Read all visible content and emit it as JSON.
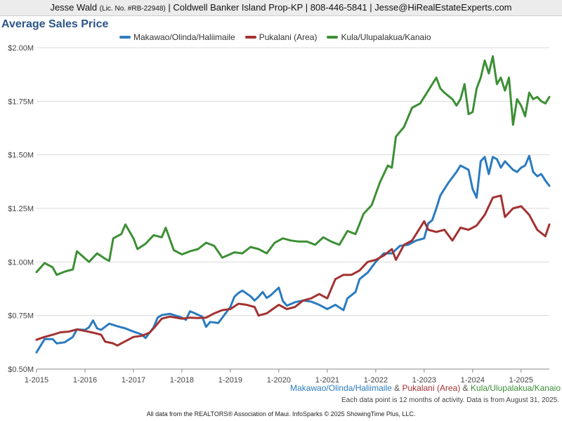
{
  "header": {
    "name": "Jesse Wald",
    "license": "(Lic. No. #RB-22948)",
    "rest": "| Coldwell Banker Island Prop-KP | 808-446-5841 | Jesse@HiRealEstateExperts.com"
  },
  "notes": {
    "amp": "&",
    "activity": "Each data point is 12 months of activity. Data is from August 31, 2025.",
    "footer": "All data from the REALTORS® Association of Maui. InfoSparks © 2025 ShowingTime Plus, LLC."
  },
  "chart_data": {
    "type": "line",
    "title": "Average Sales Price",
    "xlabel": "",
    "ylabel": "",
    "grid": true,
    "legend_position": "top-center",
    "x_start": "2015-01",
    "x_end": "2025-08",
    "xlim": [
      "2015-01",
      "2025-08"
    ],
    "ylim": [
      500000,
      2000000
    ],
    "x_ticks": [
      "1-2015",
      "1-2016",
      "1-2017",
      "1-2018",
      "1-2019",
      "1-2020",
      "1-2021",
      "1-2022",
      "1-2023",
      "1-2024",
      "1-2025"
    ],
    "y_ticks": [
      {
        "value": 500000,
        "label": "$0.50M"
      },
      {
        "value": 750000,
        "label": "$0.75M"
      },
      {
        "value": 1000000,
        "label": "$1.00M"
      },
      {
        "value": 1250000,
        "label": "$1.25M"
      },
      {
        "value": 1500000,
        "label": "$1.50M"
      },
      {
        "value": 1750000,
        "label": "$1.75M"
      },
      {
        "value": 2000000,
        "label": "$2.00M"
      }
    ],
    "series": [
      {
        "name": "Makawao/Olinda/Haliimaile",
        "color": "#2b7bbf",
        "points": [
          [
            "2015-01",
            578000
          ],
          [
            "2015-03",
            640000
          ],
          [
            "2015-05",
            640000
          ],
          [
            "2015-06",
            620000
          ],
          [
            "2015-08",
            625000
          ],
          [
            "2015-10",
            650000
          ],
          [
            "2015-11",
            685000
          ],
          [
            "2016-01",
            683000
          ],
          [
            "2016-02",
            695000
          ],
          [
            "2016-03",
            727000
          ],
          [
            "2016-04",
            690000
          ],
          [
            "2016-05",
            683000
          ],
          [
            "2016-07",
            712000
          ],
          [
            "2016-09",
            700000
          ],
          [
            "2016-11",
            690000
          ],
          [
            "2017-01",
            675000
          ],
          [
            "2017-03",
            662000
          ],
          [
            "2017-04",
            645000
          ],
          [
            "2017-06",
            695000
          ],
          [
            "2017-07",
            740000
          ],
          [
            "2017-08",
            752000
          ],
          [
            "2017-10",
            758000
          ],
          [
            "2018-01",
            740000
          ],
          [
            "2018-02",
            730000
          ],
          [
            "2018-03",
            770000
          ],
          [
            "2018-04",
            762000
          ],
          [
            "2018-06",
            745000
          ],
          [
            "2018-07",
            697000
          ],
          [
            "2018-08",
            720000
          ],
          [
            "2018-10",
            715000
          ],
          [
            "2019-01",
            790000
          ],
          [
            "2019-02",
            838000
          ],
          [
            "2019-03",
            855000
          ],
          [
            "2019-04",
            866000
          ],
          [
            "2019-06",
            840000
          ],
          [
            "2019-07",
            820000
          ],
          [
            "2019-08",
            838000
          ],
          [
            "2019-09",
            860000
          ],
          [
            "2019-10",
            832000
          ],
          [
            "2019-11",
            845000
          ],
          [
            "2020-01",
            880000
          ],
          [
            "2020-02",
            818000
          ],
          [
            "2020-03",
            796000
          ],
          [
            "2020-05",
            812000
          ],
          [
            "2020-07",
            820000
          ],
          [
            "2020-09",
            815000
          ],
          [
            "2020-11",
            800000
          ],
          [
            "2021-01",
            780000
          ],
          [
            "2021-03",
            800000
          ],
          [
            "2021-05",
            775000
          ],
          [
            "2021-06",
            830000
          ],
          [
            "2021-08",
            860000
          ],
          [
            "2021-09",
            920000
          ],
          [
            "2021-11",
            950000
          ],
          [
            "2022-01",
            1000000
          ],
          [
            "2022-03",
            1040000
          ],
          [
            "2022-05",
            1040000
          ],
          [
            "2022-07",
            1075000
          ],
          [
            "2022-09",
            1080000
          ],
          [
            "2022-11",
            1100000
          ],
          [
            "2023-01",
            1110000
          ],
          [
            "2023-02",
            1180000
          ],
          [
            "2023-03",
            1195000
          ],
          [
            "2023-04",
            1250000
          ],
          [
            "2023-05",
            1310000
          ],
          [
            "2023-07",
            1370000
          ],
          [
            "2023-09",
            1420000
          ],
          [
            "2023-10",
            1450000
          ],
          [
            "2023-12",
            1430000
          ],
          [
            "2024-01",
            1340000
          ],
          [
            "2024-02",
            1300000
          ],
          [
            "2024-03",
            1470000
          ],
          [
            "2024-04",
            1490000
          ],
          [
            "2024-05",
            1410000
          ],
          [
            "2024-06",
            1490000
          ],
          [
            "2024-07",
            1480000
          ],
          [
            "2024-08",
            1440000
          ],
          [
            "2024-09",
            1470000
          ],
          [
            "2024-10",
            1450000
          ],
          [
            "2024-11",
            1430000
          ],
          [
            "2024-12",
            1420000
          ],
          [
            "2025-01",
            1440000
          ],
          [
            "2025-02",
            1450000
          ],
          [
            "2025-03",
            1495000
          ],
          [
            "2025-04",
            1420000
          ],
          [
            "2025-05",
            1400000
          ],
          [
            "2025-06",
            1410000
          ],
          [
            "2025-07",
            1380000
          ],
          [
            "2025-08",
            1355000
          ]
        ]
      },
      {
        "name": "Pukalani (Area)",
        "color": "#a33232",
        "points": [
          [
            "2015-01",
            637000
          ],
          [
            "2015-03",
            650000
          ],
          [
            "2015-05",
            660000
          ],
          [
            "2015-07",
            672000
          ],
          [
            "2015-09",
            675000
          ],
          [
            "2015-11",
            685000
          ],
          [
            "2016-01",
            678000
          ],
          [
            "2016-03",
            670000
          ],
          [
            "2016-05",
            660000
          ],
          [
            "2016-06",
            628000
          ],
          [
            "2016-08",
            620000
          ],
          [
            "2016-09",
            610000
          ],
          [
            "2016-11",
            630000
          ],
          [
            "2017-01",
            650000
          ],
          [
            "2017-03",
            655000
          ],
          [
            "2017-05",
            670000
          ],
          [
            "2017-06",
            690000
          ],
          [
            "2017-08",
            735000
          ],
          [
            "2017-10",
            745000
          ],
          [
            "2018-01",
            735000
          ],
          [
            "2018-03",
            740000
          ],
          [
            "2018-05",
            738000
          ],
          [
            "2018-07",
            740000
          ],
          [
            "2018-09",
            760000
          ],
          [
            "2018-11",
            775000
          ],
          [
            "2019-01",
            780000
          ],
          [
            "2019-03",
            805000
          ],
          [
            "2019-05",
            800000
          ],
          [
            "2019-07",
            790000
          ],
          [
            "2019-08",
            750000
          ],
          [
            "2019-10",
            760000
          ],
          [
            "2020-01",
            800000
          ],
          [
            "2020-03",
            780000
          ],
          [
            "2020-05",
            790000
          ],
          [
            "2020-07",
            820000
          ],
          [
            "2020-09",
            830000
          ],
          [
            "2020-11",
            850000
          ],
          [
            "2021-01",
            830000
          ],
          [
            "2021-03",
            920000
          ],
          [
            "2021-05",
            940000
          ],
          [
            "2021-07",
            940000
          ],
          [
            "2021-09",
            960000
          ],
          [
            "2021-11",
            1000000
          ],
          [
            "2022-01",
            1010000
          ],
          [
            "2022-03",
            1030000
          ],
          [
            "2022-05",
            1060000
          ],
          [
            "2022-06",
            1010000
          ],
          [
            "2022-08",
            1080000
          ],
          [
            "2022-10",
            1100000
          ],
          [
            "2023-01",
            1190000
          ],
          [
            "2023-02",
            1150000
          ],
          [
            "2023-04",
            1140000
          ],
          [
            "2023-06",
            1150000
          ],
          [
            "2023-08",
            1100000
          ],
          [
            "2023-10",
            1160000
          ],
          [
            "2023-12",
            1150000
          ],
          [
            "2024-02",
            1170000
          ],
          [
            "2024-04",
            1220000
          ],
          [
            "2024-06",
            1300000
          ],
          [
            "2024-08",
            1310000
          ],
          [
            "2024-09",
            1210000
          ],
          [
            "2024-11",
            1250000
          ],
          [
            "2025-01",
            1260000
          ],
          [
            "2025-03",
            1220000
          ],
          [
            "2025-05",
            1150000
          ],
          [
            "2025-07",
            1120000
          ],
          [
            "2025-08",
            1175000
          ]
        ]
      },
      {
        "name": "Kula/Ulupalakua/Kanaio",
        "color": "#3d8f35",
        "points": [
          [
            "2015-01",
            953000
          ],
          [
            "2015-03",
            995000
          ],
          [
            "2015-05",
            975000
          ],
          [
            "2015-06",
            940000
          ],
          [
            "2015-08",
            955000
          ],
          [
            "2015-10",
            965000
          ],
          [
            "2015-11",
            1050000
          ],
          [
            "2016-02",
            1000000
          ],
          [
            "2016-04",
            1040000
          ],
          [
            "2016-06",
            1015000
          ],
          [
            "2016-07",
            1005000
          ],
          [
            "2016-08",
            1110000
          ],
          [
            "2016-10",
            1130000
          ],
          [
            "2016-11",
            1175000
          ],
          [
            "2017-01",
            1110000
          ],
          [
            "2017-02",
            1060000
          ],
          [
            "2017-04",
            1085000
          ],
          [
            "2017-06",
            1125000
          ],
          [
            "2017-08",
            1115000
          ],
          [
            "2017-09",
            1160000
          ],
          [
            "2017-11",
            1055000
          ],
          [
            "2018-01",
            1035000
          ],
          [
            "2018-03",
            1050000
          ],
          [
            "2018-05",
            1060000
          ],
          [
            "2018-07",
            1090000
          ],
          [
            "2018-09",
            1075000
          ],
          [
            "2018-11",
            1020000
          ],
          [
            "2019-02",
            1045000
          ],
          [
            "2019-04",
            1040000
          ],
          [
            "2019-06",
            1070000
          ],
          [
            "2019-08",
            1060000
          ],
          [
            "2019-10",
            1040000
          ],
          [
            "2019-12",
            1090000
          ],
          [
            "2020-02",
            1110000
          ],
          [
            "2020-04",
            1100000
          ],
          [
            "2020-06",
            1095000
          ],
          [
            "2020-08",
            1095000
          ],
          [
            "2020-10",
            1080000
          ],
          [
            "2020-12",
            1115000
          ],
          [
            "2021-02",
            1095000
          ],
          [
            "2021-04",
            1080000
          ],
          [
            "2021-06",
            1145000
          ],
          [
            "2021-08",
            1130000
          ],
          [
            "2021-10",
            1225000
          ],
          [
            "2021-12",
            1265000
          ],
          [
            "2022-02",
            1370000
          ],
          [
            "2022-04",
            1450000
          ],
          [
            "2022-05",
            1440000
          ],
          [
            "2022-06",
            1585000
          ],
          [
            "2022-08",
            1630000
          ],
          [
            "2022-10",
            1720000
          ],
          [
            "2022-12",
            1740000
          ],
          [
            "2023-02",
            1800000
          ],
          [
            "2023-04",
            1860000
          ],
          [
            "2023-05",
            1810000
          ],
          [
            "2023-06",
            1790000
          ],
          [
            "2023-08",
            1760000
          ],
          [
            "2023-09",
            1730000
          ],
          [
            "2023-10",
            1760000
          ],
          [
            "2023-11",
            1830000
          ],
          [
            "2023-12",
            1690000
          ],
          [
            "2024-01",
            1700000
          ],
          [
            "2024-02",
            1810000
          ],
          [
            "2024-03",
            1860000
          ],
          [
            "2024-04",
            1940000
          ],
          [
            "2024-05",
            1880000
          ],
          [
            "2024-06",
            1960000
          ],
          [
            "2024-07",
            1830000
          ],
          [
            "2024-08",
            1860000
          ],
          [
            "2024-09",
            1800000
          ],
          [
            "2024-10",
            1860000
          ],
          [
            "2024-11",
            1640000
          ],
          [
            "2024-12",
            1760000
          ],
          [
            "2025-01",
            1730000
          ],
          [
            "2025-02",
            1680000
          ],
          [
            "2025-03",
            1790000
          ],
          [
            "2025-04",
            1760000
          ],
          [
            "2025-05",
            1770000
          ],
          [
            "2025-06",
            1750000
          ],
          [
            "2025-07",
            1740000
          ],
          [
            "2025-08",
            1770000
          ]
        ]
      }
    ]
  }
}
